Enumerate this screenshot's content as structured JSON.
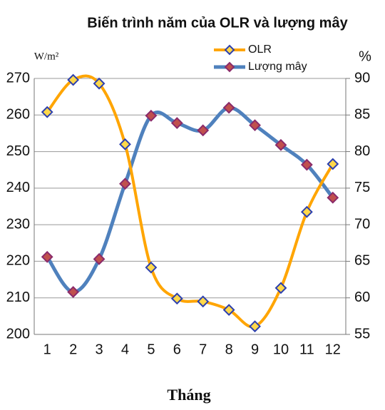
{
  "chart_data": {
    "type": "line",
    "title": "Biến trình năm của OLR và lượng mây",
    "y_label": "W/m²",
    "y2_label": "%",
    "x_label": "Tháng",
    "categories": [
      "1",
      "2",
      "3",
      "4",
      "5",
      "6",
      "7",
      "8",
      "9",
      "10",
      "11",
      "12"
    ],
    "series": [
      {
        "name": "OLR",
        "color": "#ffa500",
        "marker_color": "#2b3fb0",
        "values": [
          260.8,
          269.6,
          268.6,
          252,
          218.3,
          209.8,
          209,
          206.7,
          202.2,
          212.7,
          233.5,
          246.6
        ]
      },
      {
        "name": "Lượng mây",
        "color": "#4f81bd",
        "marker_color": "#c0504d",
        "axis": "y2",
        "values": [
          65.6,
          60.8,
          65.3,
          75.6,
          84.9,
          83.9,
          82.9,
          86,
          83.6,
          80.9,
          78.2,
          73.7
        ]
      }
    ],
    "ylim": [
      200,
      270
    ],
    "yticks": [
      200,
      210,
      220,
      230,
      240,
      250,
      260,
      270
    ],
    "y2lim": [
      55,
      90
    ],
    "y2ticks": [
      55,
      60,
      65,
      70,
      75,
      80,
      85,
      90
    ],
    "grid": true,
    "legend": "top-right"
  }
}
